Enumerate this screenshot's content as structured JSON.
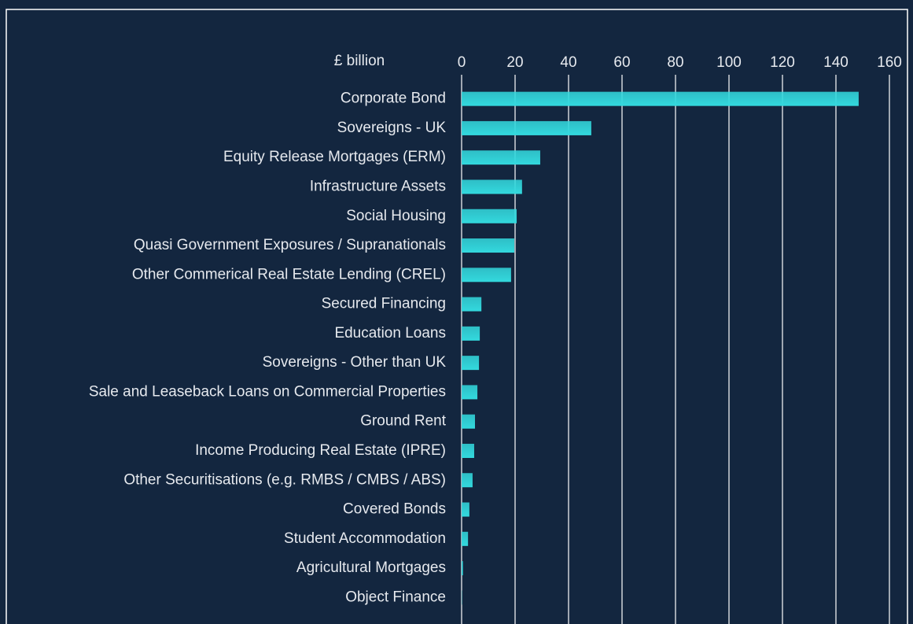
{
  "chart_data": {
    "type": "hbar",
    "axis_label": "£ billion",
    "categories": [
      "Corporate Bond",
      "Sovereigns - UK",
      "Equity Release Mortgages (ERM)",
      "Infrastructure Assets",
      "Social Housing",
      "Quasi Government Exposures / Supranationals",
      "Other Commerical Real Estate Lending (CREL)",
      "Secured Financing",
      "Education Loans",
      "Sovereigns - Other than UK",
      "Sale and Leaseback Loans on Commercial Properties",
      "Ground Rent",
      "Income Producing Real Estate (IPRE)",
      "Other Securitisations (e.g. RMBS / CMBS / ABS)",
      "Covered Bonds",
      "Student Accommodation",
      "Agricultural Mortgages",
      "Object Finance"
    ],
    "values": [
      148.5,
      48.5,
      29.4,
      22.6,
      20.6,
      19.7,
      18.5,
      7.4,
      6.8,
      6.5,
      5.9,
      5.0,
      4.7,
      4.1,
      2.9,
      2.4,
      0.5,
      0.1
    ],
    "color": "#33d9de",
    "xlim": [
      0,
      160
    ],
    "xticks": [
      0,
      20,
      40,
      60,
      80,
      100,
      120,
      140,
      160
    ],
    "grid": true
  }
}
